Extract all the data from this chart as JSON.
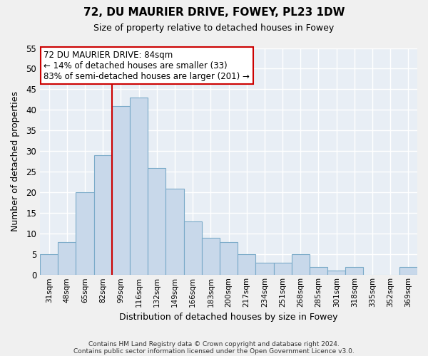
{
  "title": "72, DU MAURIER DRIVE, FOWEY, PL23 1DW",
  "subtitle": "Size of property relative to detached houses in Fowey",
  "xlabel": "Distribution of detached houses by size in Fowey",
  "ylabel": "Number of detached properties",
  "bin_labels": [
    "31sqm",
    "48sqm",
    "65sqm",
    "82sqm",
    "99sqm",
    "116sqm",
    "132sqm",
    "149sqm",
    "166sqm",
    "183sqm",
    "200sqm",
    "217sqm",
    "234sqm",
    "251sqm",
    "268sqm",
    "285sqm",
    "301sqm",
    "318sqm",
    "335sqm",
    "352sqm",
    "369sqm"
  ],
  "bar_values": [
    5,
    8,
    20,
    29,
    41,
    43,
    26,
    21,
    13,
    9,
    8,
    5,
    3,
    3,
    5,
    2,
    1,
    2,
    0,
    0,
    2
  ],
  "bar_color": "#c8d8ea",
  "bar_edge_color": "#7aaac8",
  "ylim": [
    0,
    55
  ],
  "yticks": [
    0,
    5,
    10,
    15,
    20,
    25,
    30,
    35,
    40,
    45,
    50,
    55
  ],
  "vline_x": 3,
  "vline_color": "#cc0000",
  "annotation_title": "72 DU MAURIER DRIVE: 84sqm",
  "annotation_line1": "← 14% of detached houses are smaller (33)",
  "annotation_line2": "83% of semi-detached houses are larger (201) →",
  "footer1": "Contains HM Land Registry data © Crown copyright and database right 2024.",
  "footer2": "Contains public sector information licensed under the Open Government Licence v3.0.",
  "plot_bg_color": "#e8eef5",
  "fig_bg_color": "#f0f0f0"
}
